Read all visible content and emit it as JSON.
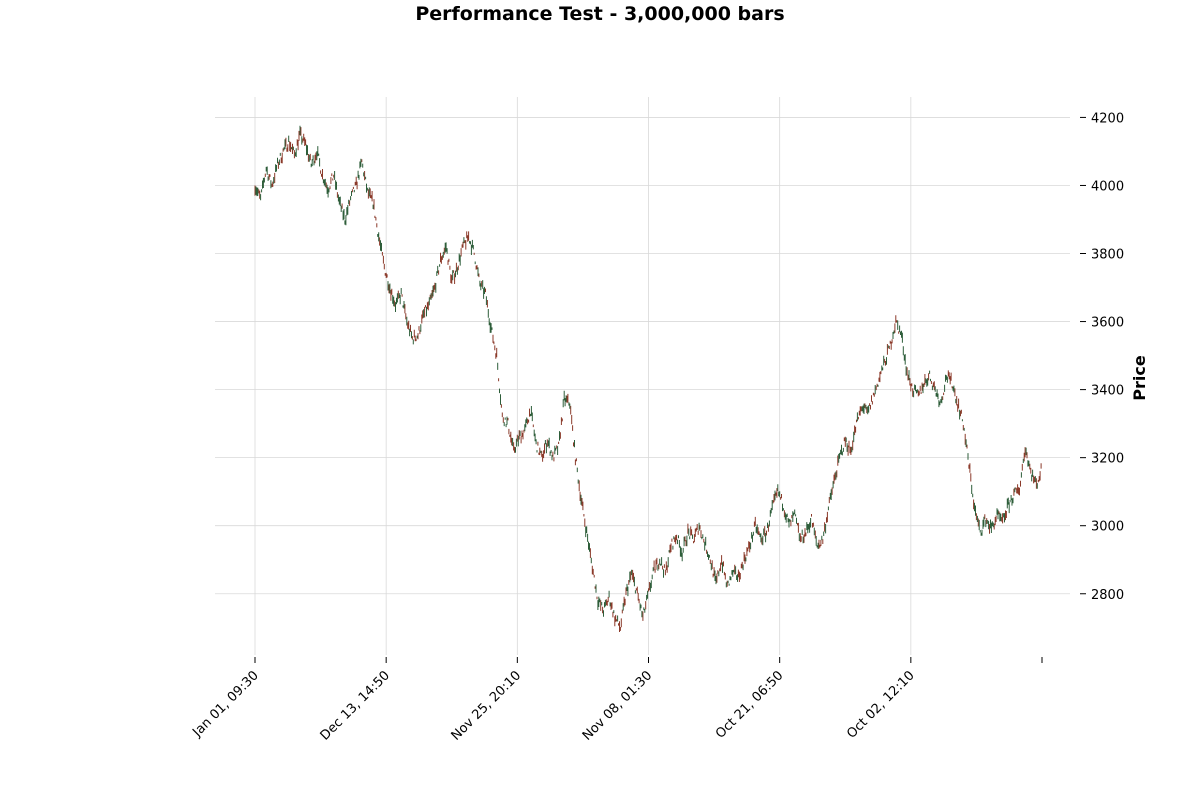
{
  "chart_data": {
    "type": "line",
    "title": "Performance Test - 3,000,000 bars",
    "ylabel": "Price",
    "xlabel": "",
    "ylim": [
      2620,
      4260
    ],
    "yticks": [
      2800,
      3000,
      3200,
      3400,
      3600,
      3800,
      4000,
      4200
    ],
    "xticks": [
      "Jan 01, 09:30",
      "Dec 13, 14:50",
      "Nov 25, 20:10",
      "Nov 08, 01:30",
      "Oct 21, 06:50",
      "Oct 02, 12:10",
      ""
    ],
    "grid": true,
    "y_axis_side": "right",
    "colors": {
      "up": "#2e5e3a",
      "down": "#8b3a2a",
      "grid": "#d9d9d9"
    },
    "series": [
      {
        "x_start_tick": 0,
        "x_end_tick": 6,
        "values": [
          4000,
          3960,
          4050,
          4000,
          4060,
          4100,
          4130,
          4090,
          4150,
          4120,
          4060,
          4100,
          4030,
          3990,
          4030,
          3950,
          3900,
          3960,
          4000,
          4070,
          3980,
          3950,
          3850,
          3760,
          3700,
          3650,
          3680,
          3600,
          3550,
          3560,
          3620,
          3650,
          3700,
          3780,
          3820,
          3720,
          3760,
          3820,
          3850,
          3800,
          3710,
          3680,
          3580,
          3500,
          3320,
          3300,
          3220,
          3260,
          3280,
          3340,
          3240,
          3200,
          3250,
          3200,
          3230,
          3370,
          3360,
          3200,
          3080,
          2980,
          2880,
          2780,
          2750,
          2790,
          2730,
          2700,
          2800,
          2860,
          2800,
          2730,
          2800,
          2870,
          2900,
          2860,
          2940,
          2970,
          2920,
          2980,
          2960,
          3000,
          2950,
          2900,
          2830,
          2900,
          2820,
          2860,
          2850,
          2900,
          2940,
          3000,
          2960,
          2980,
          3050,
          3100,
          3060,
          3000,
          3030,
          2960,
          2980,
          3020,
          2940,
          2960,
          3050,
          3130,
          3200,
          3250,
          3220,
          3300,
          3350,
          3330,
          3380,
          3430,
          3480,
          3530,
          3600,
          3560,
          3450,
          3400,
          3380,
          3420,
          3440,
          3400,
          3360,
          3440,
          3420,
          3360,
          3300,
          3180,
          3050,
          2980,
          3020,
          2990,
          3030,
          3010,
          3060,
          3090,
          3110,
          3230,
          3160,
          3120,
          3170
        ]
      }
    ]
  }
}
